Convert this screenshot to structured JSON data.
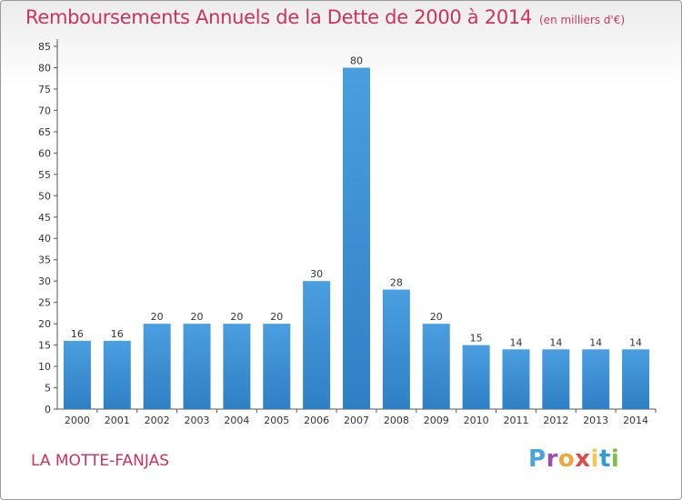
{
  "title": "Remboursements Annuels de la Dette de 2000 à 2014",
  "subtitle": "(en milliers d'€)",
  "commune": "LA MOTTE-FANJAS",
  "logo": {
    "letters": [
      "P",
      "r",
      "o",
      "x",
      "i",
      "t",
      "i"
    ],
    "colors": [
      "#4aa3df",
      "#9c4fb3",
      "#f0a63a",
      "#e04a4a",
      "#f2c94c",
      "#2d9bd6",
      "#7bc043"
    ]
  },
  "colors": {
    "bar": "#4a9fe0",
    "bar_dark": "#2f7fc4",
    "title": "#c8345e"
  },
  "chart_data": {
    "type": "bar",
    "categories": [
      "2000",
      "2001",
      "2002",
      "2003",
      "2004",
      "2005",
      "2006",
      "2007",
      "2008",
      "2009",
      "2010",
      "2011",
      "2012",
      "2013",
      "2014"
    ],
    "values": [
      16,
      16,
      20,
      20,
      20,
      20,
      30,
      80,
      28,
      20,
      15,
      14,
      14,
      14,
      14
    ],
    "data_labels": [
      "16",
      "16",
      "20",
      "20",
      "20",
      "20",
      "30",
      "80",
      "28",
      "20",
      "15",
      "14",
      "14",
      "14",
      "14"
    ],
    "yticks": [
      0,
      5,
      10,
      15,
      20,
      25,
      30,
      35,
      40,
      45,
      50,
      55,
      60,
      65,
      70,
      75,
      80,
      85
    ],
    "ylim": [
      0,
      85
    ],
    "grid": false,
    "xlabel": "",
    "ylabel": ""
  }
}
